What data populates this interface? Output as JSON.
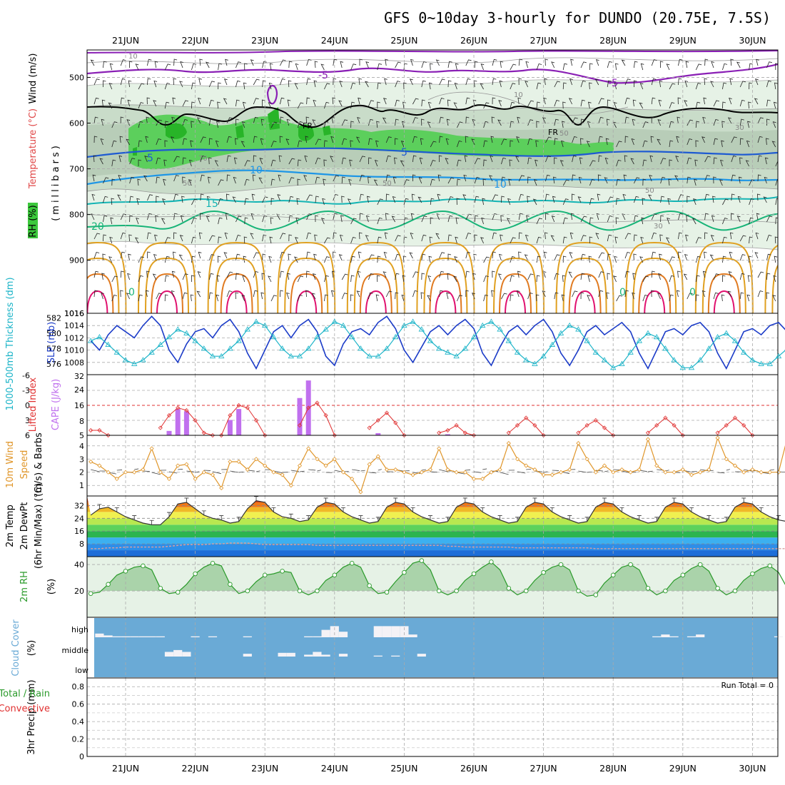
{
  "title": "GFS 0~10day 3-hourly for DUNDO (20.75E, 7.5S)",
  "dates": [
    "21JUN",
    "22JUN",
    "23JUN",
    "24JUN",
    "25JUN",
    "26JUN",
    "27JUN",
    "28JUN",
    "29JUN",
    "30JUN"
  ],
  "run_total": "Run Total = 0",
  "colors": {
    "humid": "#cfe9cf",
    "green": "#4fc84f",
    "temp_neg": "#8a1fb5",
    "temp_5": "#1e5ad2",
    "temp_10": "#1e96e6",
    "temp_15": "#14b4b4",
    "temp_20": "#18b478",
    "temp_warm": "#e0a020",
    "temp_hot": "#e0106e",
    "slp": "#1c3cc8",
    "thick": "#1cb4c8",
    "li": "#e03030",
    "cape": "#c070ee",
    "wind": "#e0962a",
    "rh": "#2a9a2a",
    "cloud": "#6aaad6"
  },
  "chart_data": [
    {
      "id": "upper-air",
      "type": "heatmap",
      "ylabel_a": "Wind (m/s)",
      "ylabel_b": "Temperature (°C)",
      "ylabel_c": "RH (%)",
      "ylabel_units": "(millibars)",
      "y_ticks": [
        500,
        600,
        700,
        800,
        900,
        1016
      ],
      "ylim": [
        440,
        1016
      ],
      "temperature_labels": [
        "-5",
        "-5",
        "5",
        "5",
        "10",
        "10",
        "15",
        "20",
        "0",
        "0",
        "0"
      ],
      "rh_labels": [
        "10",
        "10",
        "30",
        "50",
        "70",
        "50",
        "50",
        "30",
        "50"
      ],
      "freezing_labels": [
        "FR",
        "FR"
      ]
    },
    {
      "id": "slp-thickness",
      "type": "line",
      "ylabel_left": "1000-500mb Thickness (dm)",
      "ylabel_right": "SLP (mb)",
      "left_ticks": [
        576,
        578,
        580,
        582
      ],
      "right_ticks": [
        1008,
        1010,
        1012,
        1014,
        1016
      ],
      "series": [
        {
          "name": "SLP (mb)",
          "values": [
            1011.5,
            1010.0,
            1012.5,
            1014.0,
            1013.0,
            1012.0,
            1014.0,
            1015.5,
            1014.0,
            1010.0,
            1008.0,
            1011.0,
            1013.0,
            1013.5,
            1012.0,
            1014.0,
            1015.0,
            1013.0,
            1009.5,
            1007.0,
            1010.0,
            1013.0,
            1014.0,
            1012.0,
            1014.0,
            1015.0,
            1013.0,
            1009.0,
            1007.5,
            1011.0,
            1013.0,
            1013.5,
            1012.5,
            1014.5,
            1015.5,
            1013.5,
            1010.0,
            1008.0,
            1010.5,
            1013.0,
            1014.0,
            1012.5,
            1014.0,
            1015.0,
            1013.5,
            1009.5,
            1007.5,
            1010.5,
            1013.0,
            1014.0,
            1012.5,
            1014.0,
            1015.0,
            1013.0,
            1009.5,
            1007.5,
            1010.0,
            1013.0,
            1014.0,
            1012.5,
            1013.5,
            1014.5,
            1013.0,
            1009.5,
            1007.0,
            1010.0,
            1013.0,
            1013.5,
            1012.5,
            1014.0,
            1014.5,
            1013.0,
            1009.5,
            1007.0,
            1010.0,
            1013.0,
            1013.5,
            1012.5,
            1014.0,
            1014.5,
            1013.0
          ]
        },
        {
          "name": "1000-500mb Thickness (dm)",
          "values": [
            579.0,
            579.5,
            578.5,
            577.5,
            576.5,
            576.0,
            576.5,
            577.5,
            578.5,
            579.5,
            580.5,
            580.0,
            579.0,
            578.0,
            577.0,
            577.0,
            578.0,
            579.0,
            580.5,
            581.5,
            581.0,
            579.5,
            578.0,
            577.0,
            577.0,
            578.0,
            579.5,
            580.5,
            581.5,
            581.0,
            579.5,
            578.0,
            577.0,
            577.0,
            578.0,
            579.5,
            581.0,
            581.5,
            580.5,
            579.0,
            578.0,
            577.5,
            577.0,
            578.0,
            579.5,
            581.0,
            581.5,
            580.5,
            579.0,
            577.5,
            576.5,
            576.0,
            577.0,
            578.5,
            580.0,
            581.0,
            580.5,
            579.0,
            577.5,
            576.5,
            575.5,
            576.0,
            577.5,
            579.0,
            580.0,
            579.5,
            578.0,
            576.5,
            575.5,
            575.5,
            576.5,
            578.0,
            579.5,
            580.0,
            579.0,
            577.5,
            576.5,
            576.0,
            576.0,
            577.0,
            578.0
          ]
        }
      ]
    },
    {
      "id": "lifted-index-cape",
      "type": "bar",
      "ylabel_left": "Lifted Index",
      "ylabel_right": "CAPE (J/kg)",
      "left_ticks": [
        "-6",
        "-3",
        "0",
        "3",
        "6"
      ],
      "right_ticks": [
        "32",
        "24",
        "16",
        "8",
        "5"
      ],
      "cape_bars": [
        {
          "i": 9,
          "v": 7
        },
        {
          "i": 10,
          "v": 17
        },
        {
          "i": 11,
          "v": 16
        },
        {
          "i": 16,
          "v": 12
        },
        {
          "i": 17,
          "v": 17
        },
        {
          "i": 24,
          "v": 22
        },
        {
          "i": 25,
          "v": 30
        },
        {
          "i": 33,
          "v": 6
        },
        {
          "i": 41,
          "v": 5.5
        }
      ],
      "lifted_index": [
        5.0,
        5.0,
        6.0,
        null,
        null,
        null,
        null,
        null,
        4.5,
        2.0,
        0.5,
        1.0,
        3.0,
        5.5,
        6.0,
        6.0,
        2.0,
        0.0,
        0.5,
        3.0,
        6.0,
        null,
        null,
        null,
        4.0,
        0.5,
        -0.5,
        2.0,
        6.0,
        null,
        null,
        null,
        4.5,
        3.0,
        1.5,
        3.5,
        6.0,
        null,
        null,
        null,
        5.5,
        5.0,
        4.0,
        5.5,
        6.0,
        null,
        null,
        null,
        5.5,
        4.0,
        2.5,
        4.0,
        6.0,
        null,
        null,
        null,
        5.5,
        4.0,
        3.0,
        4.5,
        6.0,
        null,
        null,
        null,
        5.5,
        4.0,
        2.5,
        4.0,
        6.0,
        null,
        null,
        null,
        5.5,
        4.0,
        2.5,
        4.0,
        6.0,
        null,
        null,
        null,
        6.0
      ]
    },
    {
      "id": "wind-10m",
      "type": "line",
      "ylabel_a": "10m Wind",
      "ylabel_b": "Speed",
      "ylabel_c": "(m/s) & Barbs",
      "y_ticks": [
        "1",
        "2",
        "3",
        "4"
      ],
      "series": [
        {
          "name": "Speed",
          "values": [
            2.8,
            2.5,
            2.0,
            1.5,
            2.0,
            2.0,
            2.2,
            3.8,
            2.0,
            1.5,
            2.5,
            2.6,
            1.5,
            2.0,
            1.8,
            0.8,
            2.8,
            2.8,
            2.2,
            3.0,
            2.5,
            2.0,
            1.8,
            1.0,
            2.5,
            3.8,
            3.0,
            2.5,
            3.0,
            2.0,
            1.5,
            0.5,
            2.6,
            3.2,
            2.2,
            2.2,
            2.0,
            1.8,
            2.0,
            2.2,
            3.8,
            2.2,
            2.0,
            2.0,
            1.5,
            1.5,
            2.0,
            2.2,
            4.2,
            3.0,
            2.5,
            2.2,
            1.8,
            1.8,
            2.0,
            2.2,
            4.2,
            3.0,
            2.0,
            2.5,
            2.0,
            2.2,
            2.0,
            2.2,
            4.5,
            2.5,
            2.0,
            2.0,
            2.2,
            1.8,
            2.0,
            2.2,
            4.6,
            3.0,
            2.5,
            2.0,
            2.2,
            2.0,
            2.0,
            2.0,
            4.6
          ]
        }
      ]
    },
    {
      "id": "temp-2m",
      "type": "area",
      "ylabel_a": "2m Temp",
      "ylabel_b": "2m DewPt",
      "ylabel_c": "(6hr Min/Max) (°C)",
      "y_ticks": [
        "8",
        "16",
        "24",
        "32"
      ],
      "series": [
        {
          "name": "2m Temp",
          "values": [
            26,
            30,
            31,
            28,
            25,
            23,
            21,
            20,
            20,
            25,
            33,
            34,
            30,
            26,
            24,
            23,
            21,
            22,
            30,
            35,
            34,
            28,
            25,
            24,
            22,
            23,
            31,
            34,
            33,
            28,
            25,
            23,
            21,
            22,
            31,
            34,
            33,
            28,
            25,
            23,
            21,
            22,
            31,
            34,
            33,
            28,
            25,
            23,
            21,
            22,
            31,
            34,
            33,
            28,
            25,
            23,
            21,
            22,
            31,
            34,
            33,
            28,
            25,
            23,
            21,
            22,
            31,
            34,
            33,
            28,
            25,
            23,
            21,
            22,
            31,
            34,
            33,
            28,
            25,
            23,
            22
          ]
        },
        {
          "name": "2m DewPt",
          "values": [
            5,
            5,
            5.5,
            5.5,
            6,
            6,
            6,
            6,
            6,
            6.5,
            7,
            7.5,
            7.5,
            7.5,
            8,
            8,
            8.5,
            8.5,
            8.5,
            8,
            7.5,
            7.5,
            7.5,
            7.5,
            7.5,
            7.5,
            7,
            7,
            7,
            7,
            7,
            7,
            7,
            7,
            7,
            7,
            7,
            7,
            7,
            7,
            7,
            6.5,
            6.5,
            6,
            6,
            6,
            6,
            6,
            6,
            5.5,
            5.5,
            5.5,
            5.5,
            5.5,
            5.5,
            5.5,
            5.5,
            5.5,
            5,
            5,
            5,
            5,
            5,
            5,
            5,
            5,
            5,
            5,
            5,
            5,
            5,
            5,
            5,
            5,
            5,
            5,
            5,
            5,
            5,
            5,
            5
          ]
        }
      ]
    },
    {
      "id": "rh-2m",
      "type": "area",
      "ylabel": "2m RH",
      "yunit": "(%)",
      "y_ticks": [
        "20",
        "40"
      ],
      "series": [
        {
          "name": "2m RH",
          "values": [
            18,
            19,
            25,
            32,
            35,
            38,
            39,
            36,
            22,
            18,
            19,
            25,
            33,
            38,
            41,
            39,
            25,
            18,
            20,
            27,
            32,
            33,
            35,
            34,
            20,
            17,
            20,
            28,
            32,
            38,
            41,
            38,
            24,
            18,
            19,
            27,
            34,
            41,
            43,
            36,
            20,
            17,
            20,
            28,
            33,
            38,
            42,
            36,
            22,
            17,
            20,
            28,
            34,
            38,
            40,
            36,
            20,
            16,
            17,
            26,
            32,
            38,
            40,
            36,
            22,
            17,
            20,
            28,
            32,
            37,
            40,
            35,
            22,
            17,
            20,
            28,
            33,
            37,
            39,
            34,
            22
          ]
        }
      ]
    },
    {
      "id": "cloud-cover",
      "type": "table",
      "ylabel": "Cloud Cover",
      "yunit": "(%)",
      "levels": [
        "high",
        "middle",
        "low"
      ],
      "high": [
        0,
        20,
        10,
        5,
        5,
        5,
        5,
        5,
        5,
        0,
        0,
        0,
        5,
        0,
        5,
        0,
        0,
        0,
        5,
        0,
        0,
        0,
        0,
        0,
        0,
        5,
        5,
        40,
        60,
        30,
        0,
        0,
        0,
        60,
        60,
        60,
        60,
        15,
        0,
        0,
        0,
        0,
        0,
        0,
        0,
        0,
        0,
        0,
        0,
        0,
        0,
        0,
        0,
        0,
        0,
        0,
        0,
        0,
        0,
        0,
        0,
        0,
        0,
        0,
        0,
        5,
        15,
        5,
        0,
        5,
        15,
        0,
        0,
        0,
        0,
        0,
        0,
        0,
        0,
        5,
        0
      ],
      "mid": [
        0,
        0,
        0,
        0,
        0,
        0,
        0,
        0,
        0,
        25,
        35,
        25,
        0,
        0,
        0,
        0,
        0,
        0,
        15,
        0,
        0,
        0,
        20,
        20,
        0,
        10,
        25,
        10,
        0,
        15,
        0,
        0,
        0,
        5,
        0,
        5,
        0,
        0,
        15,
        0,
        0,
        0,
        0,
        0,
        0,
        0,
        0,
        0,
        0,
        0,
        0,
        0,
        0,
        0,
        0,
        0,
        0,
        0,
        0,
        0,
        0,
        0,
        0,
        0,
        0,
        0,
        0,
        0,
        0,
        0,
        0,
        0,
        0,
        0,
        0,
        0,
        0,
        0,
        0,
        0,
        0
      ],
      "low": []
    },
    {
      "id": "precip-3hr",
      "type": "bar",
      "ylabel_a": "Total / Rain",
      "ylabel_b": "Convective",
      "ylabel_c": "3hr Precip (mm)",
      "y_ticks": [
        "0",
        "0.2",
        "0.4",
        "0.6",
        "0.8"
      ],
      "ylim": [
        0,
        0.9
      ],
      "values": []
    }
  ]
}
